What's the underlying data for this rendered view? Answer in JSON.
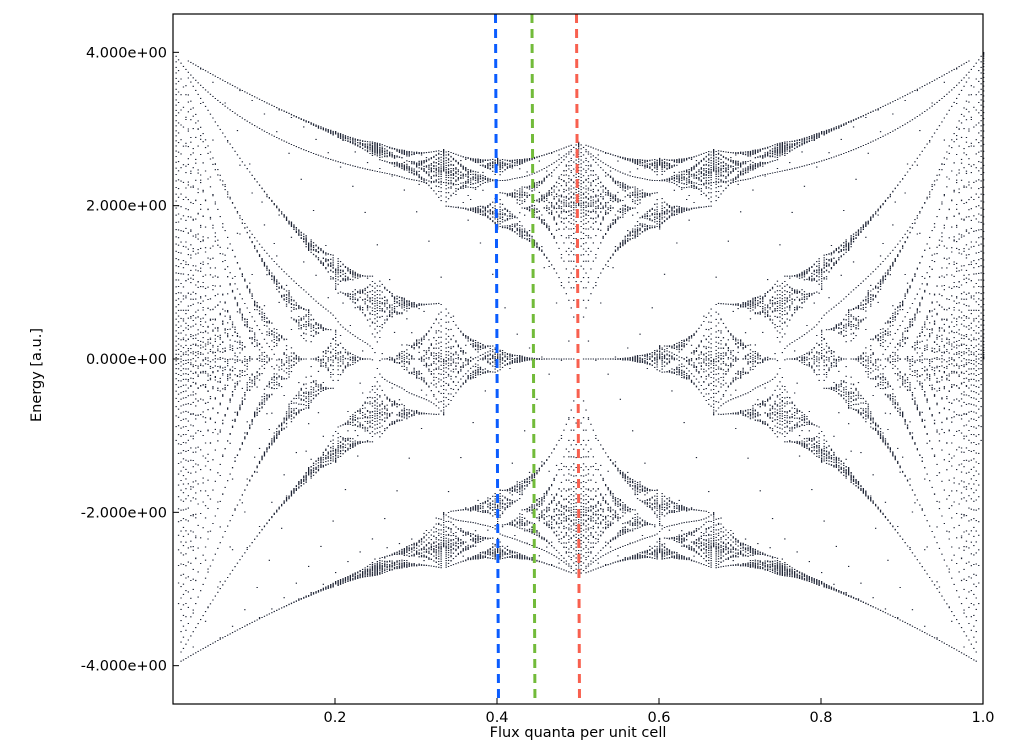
{
  "chart_data": {
    "type": "scatter",
    "title": "",
    "xlabel": "Flux quanta per unit cell",
    "ylabel": "Energy [a.u.]",
    "xlim": [
      0,
      1
    ],
    "ylim": [
      -4.5,
      4.5
    ],
    "xticks": [
      {
        "value": 0.2,
        "label": "0.2"
      },
      {
        "value": 0.4,
        "label": "0.4"
      },
      {
        "value": 0.6,
        "label": "0.6"
      },
      {
        "value": 0.8,
        "label": "0.8"
      },
      {
        "value": 1.0,
        "label": "1.0"
      }
    ],
    "yticks": [
      {
        "value": 4,
        "label": "4.000e+00"
      },
      {
        "value": 2,
        "label": "2.000e+00"
      },
      {
        "value": 0,
        "label": "0.000e+00"
      },
      {
        "value": -2,
        "label": "-2.000e+00"
      },
      {
        "value": -4,
        "label": "-4.000e+00"
      }
    ],
    "grid": false,
    "point_color": "#1c2233",
    "spectrum": "Hofstadter butterfly (tight-binding square lattice energy spectrum vs flux)",
    "vertical_lines": [
      {
        "x": 0.4,
        "color": "#0a5cff",
        "style": "dashed"
      },
      {
        "x": 0.445,
        "color": "#72bb3a",
        "style": "dashed"
      },
      {
        "x": 0.5,
        "color": "#f8604f",
        "style": "dashed"
      }
    ]
  }
}
